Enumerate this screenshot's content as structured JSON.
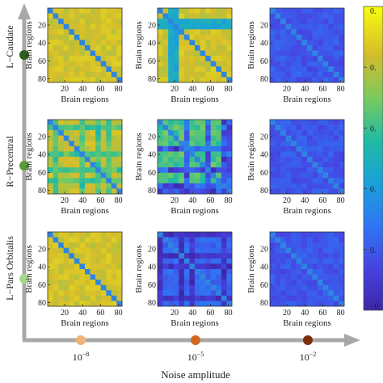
{
  "chart_data": {
    "type": "heatmap",
    "rows": [
      {
        "name": "L−Caudate",
        "marker_color": "#2e5c1c"
      },
      {
        "name": "R−Precentral",
        "marker_color": "#5a9a3a"
      },
      {
        "name": "L−Pars Orbitalis",
        "marker_color": "#a9d48e"
      }
    ],
    "columns": [
      {
        "label_base": "10",
        "label_exp": "−8",
        "marker_color": "#f0b27a"
      },
      {
        "label_base": "10",
        "label_exp": "−5",
        "marker_color": "#d3681f"
      },
      {
        "label_base": "10",
        "label_exp": "−2",
        "marker_color": "#7a2e0c"
      }
    ],
    "xlabel": "Noise amplitude",
    "panel_xlabel": "Brain regions",
    "panel_ylabel": "Brain regions",
    "panel_xticks": [
      "20",
      "40",
      "60",
      "80"
    ],
    "panel_yticks": [
      "20",
      "40",
      "60",
      "80"
    ],
    "axis_range": [
      1,
      84
    ],
    "colorbar": {
      "colormap": "parula",
      "tick_labels": [
        "0.",
        "0.",
        "0.",
        "0.",
        "0.",
        "−0"
      ],
      "tick_values": [
        1.0,
        0.8,
        0.6,
        0.4,
        0.2,
        0.0
      ],
      "range": [
        0.0,
        1.0
      ]
    },
    "panels": [
      [
        {
          "pattern": "high-uniform",
          "mean": 0.8
        },
        {
          "pattern": "high-with-low-band",
          "mean": 0.6,
          "band_regions": [
            14,
            27
          ]
        },
        {
          "pattern": "low-uniform",
          "mean": 0.08
        }
      ],
      [
        {
          "pattern": "high-checkered",
          "mean": 0.8
        },
        {
          "pattern": "mixed-checkered",
          "mean": 0.5
        },
        {
          "pattern": "low-uniform",
          "mean": 0.08
        }
      ],
      [
        {
          "pattern": "high-uniform",
          "mean": 0.8
        },
        {
          "pattern": "low-checkered",
          "mean": 0.25
        },
        {
          "pattern": "low-uniform",
          "mean": 0.08
        }
      ]
    ]
  }
}
